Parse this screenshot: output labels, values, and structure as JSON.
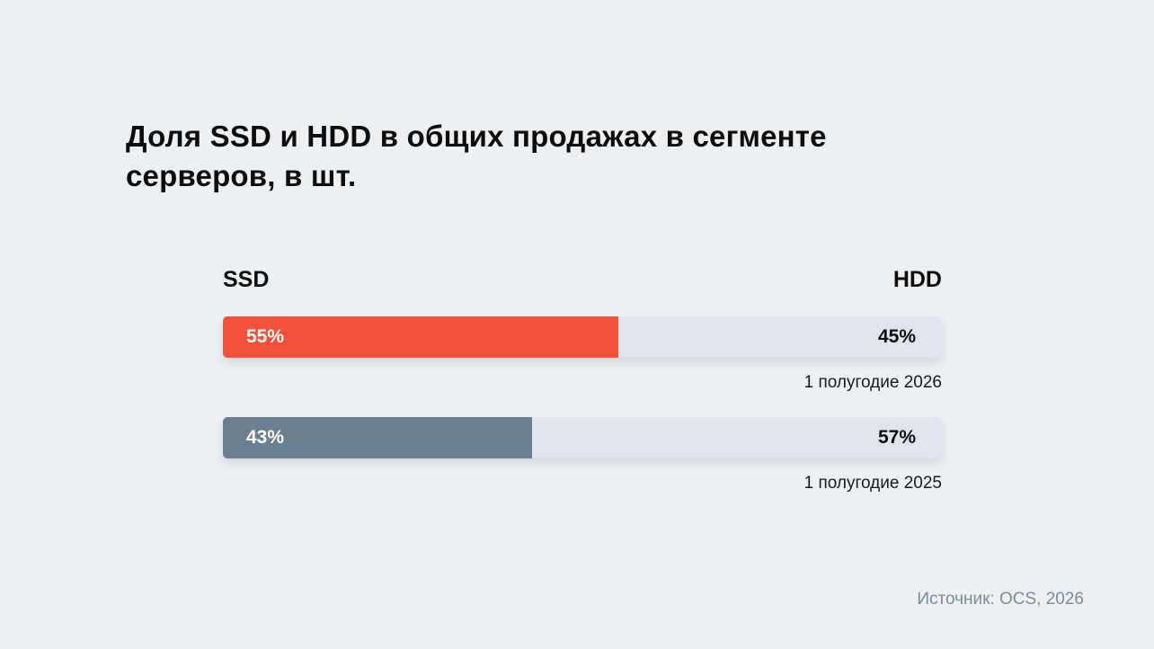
{
  "title": "Доля SSD и HDD в общих продажах в сегменте серверов, в шт.",
  "source": "Источник: OCS, 2026",
  "chart_data": {
    "type": "bar",
    "orientation": "horizontal",
    "stacked": true,
    "normalized_percent": true,
    "title": "Доля SSD и HDD в общих продажах в сегменте серверов, в шт.",
    "legend": [
      "SSD",
      "HDD"
    ],
    "categories": [
      "1 полугодие 2026",
      "1 полугодие 2025"
    ],
    "series": [
      {
        "name": "SSD",
        "values": [
          55,
          43
        ]
      },
      {
        "name": "HDD",
        "values": [
          45,
          57
        ]
      }
    ],
    "value_labels": {
      "SSD": [
        "55%",
        "43%"
      ],
      "HDD": [
        "45%",
        "57%"
      ]
    },
    "fill_colors": [
      "#f4503a",
      "#6b7f8e"
    ],
    "track_color": "#dfe4ed",
    "xlim": [
      0,
      100
    ],
    "grid": false
  }
}
